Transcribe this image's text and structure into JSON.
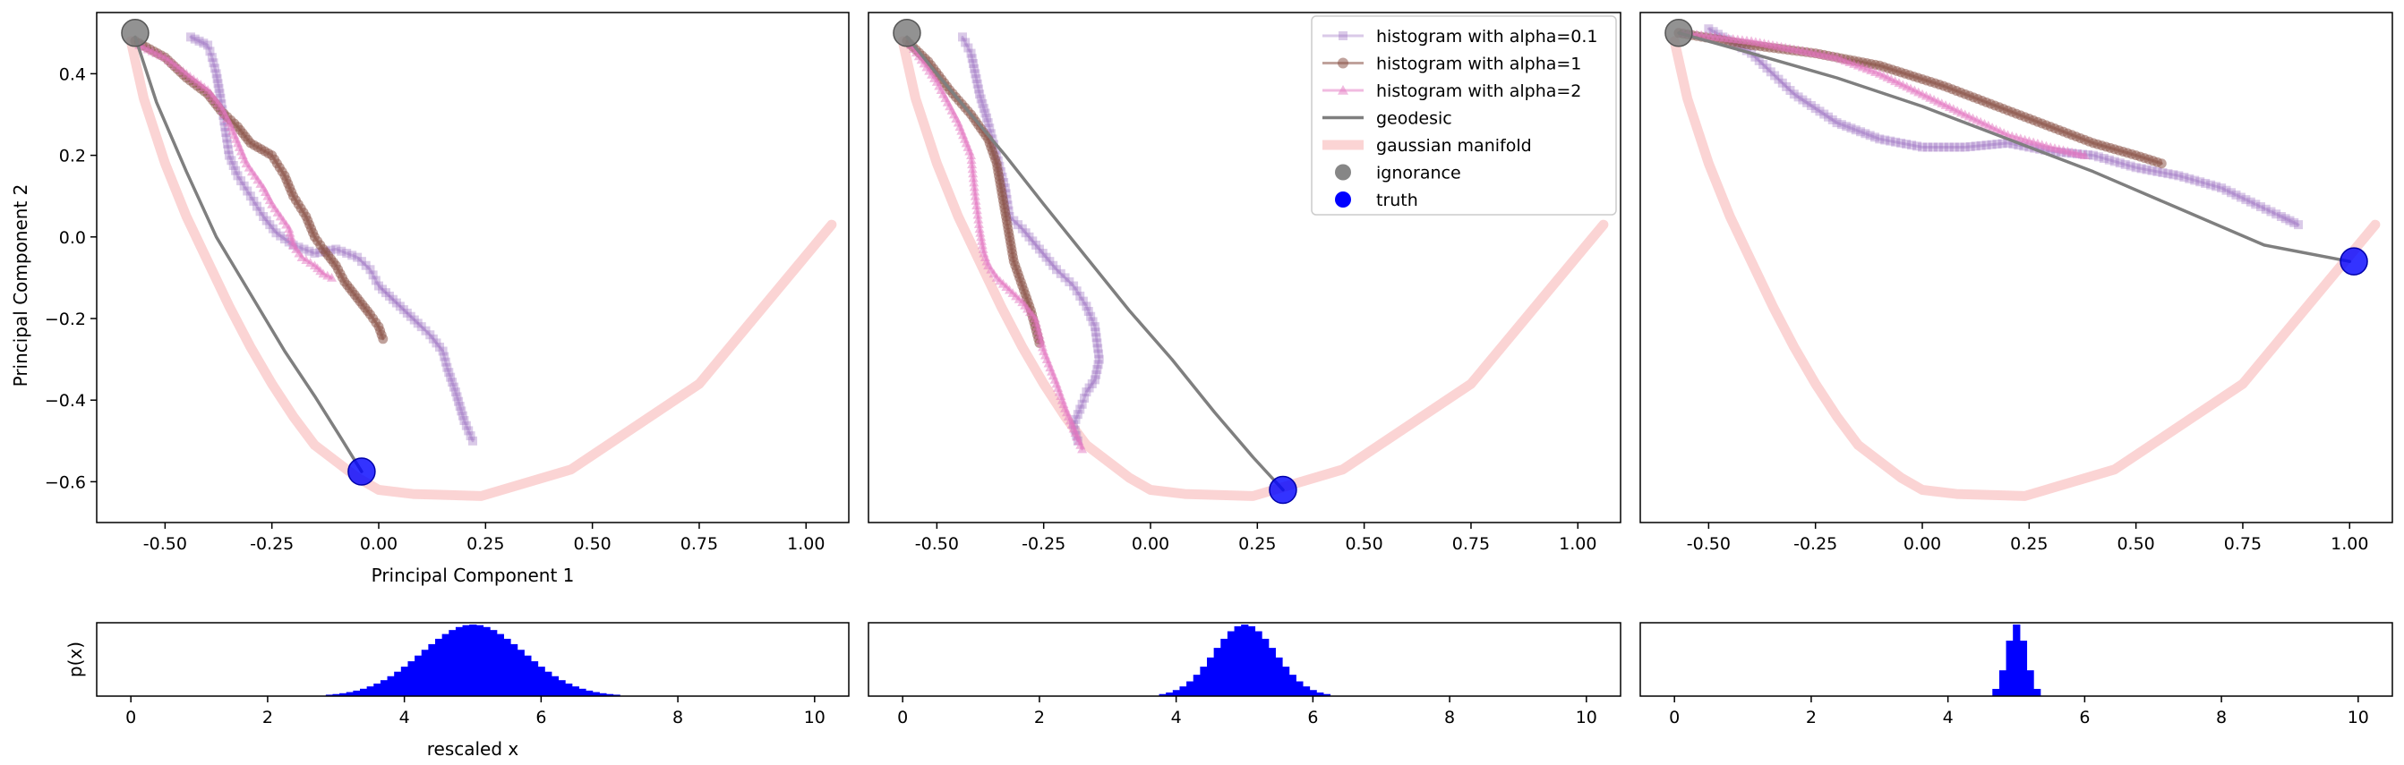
{
  "chart_data": [
    {
      "type": "line",
      "panel": "top-left",
      "xlabel": "Principal Component 1",
      "ylabel": "Principal Component 2",
      "xlim": [
        -0.66,
        1.1
      ],
      "ylim": [
        -0.7,
        0.55
      ],
      "xticks": [
        "-0.50",
        "-0.25",
        "0.00",
        "0.25",
        "0.50",
        "0.75",
        "1.00"
      ],
      "yticks": [
        "-0.6",
        "-0.4",
        "-0.2",
        "0.0",
        "0.2",
        "0.4"
      ],
      "grid": false,
      "series": [
        {
          "name": "gaussian manifold",
          "role": "manifold",
          "color": "#f8b0b0",
          "x": [
            -0.58,
            -0.55,
            -0.5,
            -0.45,
            -0.4,
            -0.35,
            -0.3,
            -0.25,
            -0.2,
            -0.15,
            -0.1,
            -0.05,
            0.0,
            0.08,
            0.24,
            0.45,
            0.75,
            1.06
          ],
          "y": [
            0.48,
            0.34,
            0.18,
            0.05,
            -0.06,
            -0.17,
            -0.27,
            -0.36,
            -0.44,
            -0.51,
            -0.55,
            -0.59,
            -0.62,
            -0.63,
            -0.635,
            -0.57,
            -0.36,
            0.03
          ]
        },
        {
          "name": "geodesic",
          "role": "geodesic",
          "color": "#7f7f7f",
          "x": [
            -0.57,
            -0.52,
            -0.45,
            -0.38,
            -0.3,
            -0.22,
            -0.15,
            -0.09,
            -0.04
          ],
          "y": [
            0.49,
            0.33,
            0.16,
            0.0,
            -0.14,
            -0.28,
            -0.39,
            -0.49,
            -0.575
          ]
        },
        {
          "name": "histogram with alpha=0.1",
          "role": "alpha01",
          "color": "#9467bd",
          "x": [
            -0.44,
            -0.4,
            -0.39,
            -0.38,
            -0.37,
            -0.36,
            -0.35,
            -0.33,
            -0.3,
            -0.27,
            -0.24,
            -0.2,
            -0.15,
            -0.1,
            -0.05,
            -0.02,
            0.0,
            0.05,
            0.1,
            0.12,
            0.15,
            0.16,
            0.18,
            0.2,
            0.22
          ],
          "y": [
            0.49,
            0.47,
            0.44,
            0.4,
            0.34,
            0.27,
            0.2,
            0.15,
            0.1,
            0.05,
            0.01,
            -0.02,
            -0.04,
            -0.03,
            -0.05,
            -0.08,
            -0.12,
            -0.17,
            -0.22,
            -0.24,
            -0.28,
            -0.32,
            -0.38,
            -0.45,
            -0.5
          ]
        },
        {
          "name": "histogram with alpha=1",
          "role": "alpha1",
          "color": "#8c564b",
          "x": [
            -0.57,
            -0.5,
            -0.45,
            -0.4,
            -0.37,
            -0.33,
            -0.3,
            -0.25,
            -0.22,
            -0.2,
            -0.17,
            -0.15,
            -0.13,
            -0.1,
            -0.08,
            -0.05,
            -0.02,
            0.0,
            0.01
          ],
          "y": [
            0.48,
            0.44,
            0.39,
            0.35,
            0.31,
            0.27,
            0.23,
            0.2,
            0.15,
            0.1,
            0.05,
            0.0,
            -0.03,
            -0.07,
            -0.11,
            -0.15,
            -0.19,
            -0.22,
            -0.25
          ]
        },
        {
          "name": "histogram with alpha=2",
          "role": "alpha2",
          "color": "#e377c2",
          "x": [
            -0.56,
            -0.5,
            -0.45,
            -0.4,
            -0.37,
            -0.35,
            -0.33,
            -0.31,
            -0.29,
            -0.27,
            -0.25,
            -0.23,
            -0.21,
            -0.2,
            -0.18,
            -0.15,
            -0.13,
            -0.11
          ],
          "y": [
            0.47,
            0.44,
            0.4,
            0.36,
            0.32,
            0.28,
            0.23,
            0.18,
            0.15,
            0.12,
            0.08,
            0.05,
            0.02,
            -0.02,
            -0.05,
            -0.07,
            -0.09,
            -0.1
          ]
        },
        {
          "name": "ignorance",
          "role": "ignorance",
          "color": "#7f7f7f",
          "x": [
            -0.57
          ],
          "y": [
            0.5
          ]
        },
        {
          "name": "truth",
          "role": "truth",
          "color": "#0000ff",
          "x": [
            -0.04
          ],
          "y": [
            -0.575
          ]
        }
      ]
    },
    {
      "type": "line",
      "panel": "top-middle",
      "xlabel": "",
      "ylabel": "",
      "xlim": [
        -0.66,
        1.1
      ],
      "ylim": [
        -0.7,
        0.55
      ],
      "xticks": [
        "-0.50",
        "-0.25",
        "0.00",
        "0.25",
        "0.50",
        "0.75",
        "1.00"
      ],
      "grid": false,
      "legend": {
        "placement": "top-right",
        "entries": [
          "histogram with alpha=0.1",
          "histogram with alpha=1",
          "histogram with alpha=2",
          "geodesic",
          "gaussian manifold",
          "ignorance",
          "truth"
        ]
      },
      "series": [
        {
          "name": "gaussian manifold",
          "role": "manifold",
          "color": "#f8b0b0",
          "x": [
            -0.58,
            -0.55,
            -0.5,
            -0.45,
            -0.4,
            -0.35,
            -0.3,
            -0.25,
            -0.2,
            -0.15,
            -0.1,
            -0.05,
            0.0,
            0.08,
            0.24,
            0.45,
            0.75,
            1.06
          ],
          "y": [
            0.48,
            0.34,
            0.18,
            0.05,
            -0.06,
            -0.17,
            -0.27,
            -0.36,
            -0.44,
            -0.51,
            -0.55,
            -0.59,
            -0.62,
            -0.63,
            -0.635,
            -0.57,
            -0.36,
            0.03
          ]
        },
        {
          "name": "geodesic",
          "role": "geodesic",
          "color": "#7f7f7f",
          "x": [
            -0.57,
            -0.5,
            -0.42,
            -0.34,
            -0.25,
            -0.15,
            -0.05,
            0.05,
            0.15,
            0.24,
            0.31
          ],
          "y": [
            0.49,
            0.4,
            0.3,
            0.2,
            0.08,
            -0.05,
            -0.18,
            -0.3,
            -0.43,
            -0.54,
            -0.62
          ]
        },
        {
          "name": "histogram with alpha=0.1",
          "role": "alpha01",
          "color": "#9467bd",
          "x": [
            -0.44,
            -0.42,
            -0.4,
            -0.38,
            -0.36,
            -0.34,
            -0.33,
            -0.3,
            -0.26,
            -0.22,
            -0.18,
            -0.15,
            -0.13,
            -0.12,
            -0.13,
            -0.15,
            -0.16,
            -0.18,
            -0.17
          ],
          "y": [
            0.49,
            0.45,
            0.35,
            0.28,
            0.2,
            0.12,
            0.05,
            0.02,
            -0.03,
            -0.08,
            -0.12,
            -0.17,
            -0.22,
            -0.3,
            -0.35,
            -0.38,
            -0.41,
            -0.46,
            -0.5
          ]
        },
        {
          "name": "histogram with alpha=1",
          "role": "alpha1",
          "color": "#8c564b",
          "x": [
            -0.57,
            -0.52,
            -0.47,
            -0.42,
            -0.38,
            -0.36,
            -0.35,
            -0.34,
            -0.33,
            -0.32,
            -0.3,
            -0.28,
            -0.27,
            -0.26
          ],
          "y": [
            0.48,
            0.43,
            0.36,
            0.3,
            0.24,
            0.18,
            0.12,
            0.06,
            0.0,
            -0.06,
            -0.12,
            -0.18,
            -0.22,
            -0.26
          ]
        },
        {
          "name": "histogram with alpha=2",
          "role": "alpha2",
          "color": "#e377c2",
          "x": [
            -0.56,
            -0.5,
            -0.45,
            -0.42,
            -0.41,
            -0.4,
            -0.39,
            -0.38,
            -0.36,
            -0.33,
            -0.3,
            -0.27,
            -0.25,
            -0.22,
            -0.2,
            -0.18,
            -0.16
          ],
          "y": [
            0.47,
            0.38,
            0.28,
            0.2,
            0.1,
            0.02,
            -0.04,
            -0.07,
            -0.1,
            -0.13,
            -0.16,
            -0.2,
            -0.28,
            -0.36,
            -0.42,
            -0.47,
            -0.52
          ]
        },
        {
          "name": "ignorance",
          "role": "ignorance",
          "color": "#7f7f7f",
          "x": [
            -0.57
          ],
          "y": [
            0.5
          ]
        },
        {
          "name": "truth",
          "role": "truth",
          "color": "#0000ff",
          "x": [
            0.31
          ],
          "y": [
            -0.62
          ]
        }
      ]
    },
    {
      "type": "line",
      "panel": "top-right",
      "xlabel": "",
      "ylabel": "",
      "xlim": [
        -0.66,
        1.1
      ],
      "ylim": [
        -0.7,
        0.55
      ],
      "xticks": [
        "-0.50",
        "-0.25",
        "0.00",
        "0.25",
        "0.50",
        "0.75",
        "1.00"
      ],
      "grid": false,
      "series": [
        {
          "name": "gaussian manifold",
          "role": "manifold",
          "color": "#f8b0b0",
          "x": [
            -0.58,
            -0.55,
            -0.5,
            -0.45,
            -0.4,
            -0.35,
            -0.3,
            -0.25,
            -0.2,
            -0.15,
            -0.1,
            -0.05,
            0.0,
            0.08,
            0.24,
            0.45,
            0.75,
            1.06
          ],
          "y": [
            0.48,
            0.34,
            0.18,
            0.05,
            -0.06,
            -0.17,
            -0.27,
            -0.36,
            -0.44,
            -0.51,
            -0.55,
            -0.59,
            -0.62,
            -0.63,
            -0.635,
            -0.57,
            -0.36,
            0.03
          ]
        },
        {
          "name": "geodesic",
          "role": "geodesic",
          "color": "#7f7f7f",
          "x": [
            -0.57,
            -0.4,
            -0.2,
            0.0,
            0.2,
            0.4,
            0.6,
            0.8,
            1.0
          ],
          "y": [
            0.5,
            0.45,
            0.39,
            0.32,
            0.24,
            0.16,
            0.07,
            -0.02,
            -0.06
          ]
        },
        {
          "name": "histogram with alpha=0.1",
          "role": "alpha01",
          "color": "#9467bd",
          "x": [
            -0.5,
            -0.4,
            -0.3,
            -0.2,
            -0.1,
            0.0,
            0.1,
            0.2,
            0.3,
            0.4,
            0.5,
            0.6,
            0.7,
            0.78,
            0.84,
            0.88
          ],
          "y": [
            0.51,
            0.45,
            0.35,
            0.28,
            0.24,
            0.22,
            0.22,
            0.23,
            0.21,
            0.2,
            0.17,
            0.15,
            0.12,
            0.08,
            0.05,
            0.03
          ]
        },
        {
          "name": "histogram with alpha=1",
          "role": "alpha1",
          "color": "#8c564b",
          "x": [
            -0.57,
            -0.4,
            -0.25,
            -0.1,
            0.05,
            0.2,
            0.3,
            0.4,
            0.5,
            0.56
          ],
          "y": [
            0.5,
            0.47,
            0.45,
            0.42,
            0.37,
            0.31,
            0.27,
            0.23,
            0.2,
            0.18
          ]
        },
        {
          "name": "histogram with alpha=2",
          "role": "alpha2",
          "color": "#e377c2",
          "x": [
            -0.56,
            -0.4,
            -0.3,
            -0.2,
            -0.1,
            0.0,
            0.1,
            0.2,
            0.3,
            0.38
          ],
          "y": [
            0.5,
            0.48,
            0.46,
            0.44,
            0.4,
            0.35,
            0.3,
            0.25,
            0.22,
            0.2
          ]
        },
        {
          "name": "ignorance",
          "role": "ignorance",
          "color": "#7f7f7f",
          "x": [
            -0.57
          ],
          "y": [
            0.5
          ]
        },
        {
          "name": "truth",
          "role": "truth",
          "color": "#0000ff",
          "x": [
            1.01
          ],
          "y": [
            -0.06
          ]
        }
      ]
    },
    {
      "type": "bar",
      "panel": "bottom-left",
      "xlabel": "rescaled x",
      "ylabel": "p(x)",
      "xlim": [
        -0.5,
        10.5
      ],
      "xticks": [
        "0",
        "2",
        "4",
        "6",
        "8",
        "10"
      ],
      "color": "#0000ff",
      "distribution": {
        "mean": 5.0,
        "std": 0.75
      }
    },
    {
      "type": "bar",
      "panel": "bottom-middle",
      "xlabel": "",
      "ylabel": "",
      "xlim": [
        -0.5,
        10.5
      ],
      "xticks": [
        "0",
        "2",
        "4",
        "6",
        "8",
        "10"
      ],
      "color": "#0000ff",
      "distribution": {
        "mean": 5.0,
        "std": 0.45
      }
    },
    {
      "type": "bar",
      "panel": "bottom-right",
      "xlabel": "",
      "ylabel": "",
      "xlim": [
        -0.5,
        10.5
      ],
      "xticks": [
        "0",
        "2",
        "4",
        "6",
        "8",
        "10"
      ],
      "color": "#0000ff",
      "distribution": {
        "mean": 5.0,
        "std": 0.14
      }
    }
  ]
}
